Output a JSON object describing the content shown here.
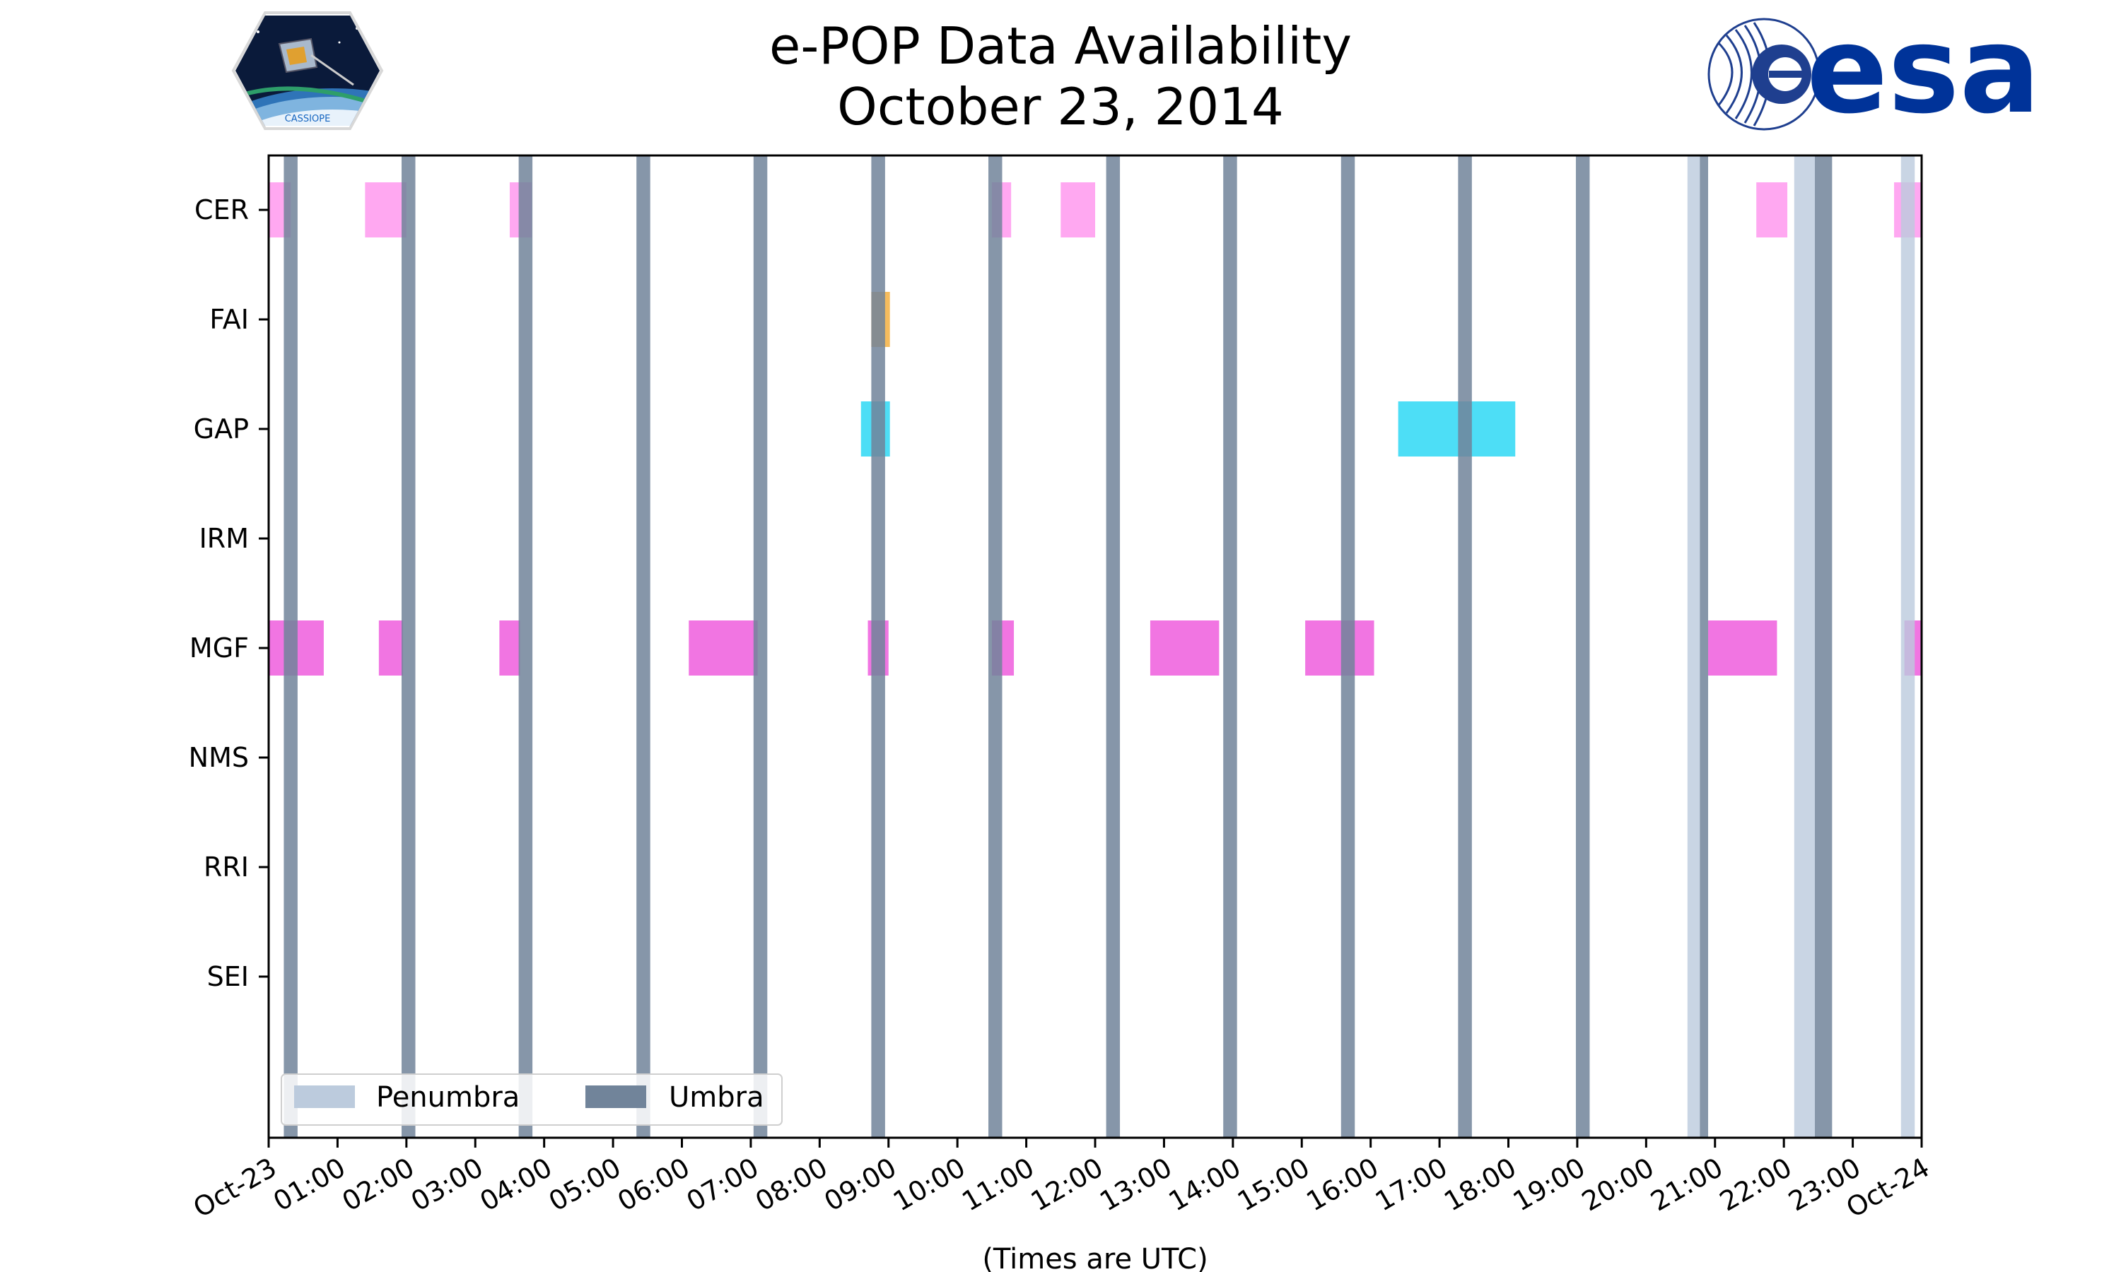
{
  "chart_data": {
    "type": "timeline",
    "title": "e-POP Data Availability",
    "subtitle": "October 23, 2014",
    "xlabel": "(Times are UTC)",
    "x_range_hours": [
      0,
      24
    ],
    "x_ticks": [
      "Oct-23",
      "01:00",
      "02:00",
      "03:00",
      "04:00",
      "05:00",
      "06:00",
      "07:00",
      "08:00",
      "09:00",
      "10:00",
      "11:00",
      "12:00",
      "13:00",
      "14:00",
      "15:00",
      "16:00",
      "17:00",
      "18:00",
      "19:00",
      "20:00",
      "21:00",
      "22:00",
      "23:00",
      "Oct-24"
    ],
    "instruments": [
      "CER",
      "FAI",
      "GAP",
      "IRM",
      "MGF",
      "NMS",
      "RRI",
      "SEI"
    ],
    "colors": {
      "CER": "#ff99ee",
      "FAI": "#f5b041",
      "GAP": "#2ed8f5",
      "MGF": "#ee5ddd",
      "umbra": "#71849a",
      "penumbra": "#bccbdd"
    },
    "availability": {
      "CER": [
        [
          0.0,
          0.32
        ],
        [
          1.4,
          2.0
        ],
        [
          3.5,
          3.82
        ],
        [
          10.5,
          10.78
        ],
        [
          11.5,
          12.0
        ],
        [
          21.6,
          22.05
        ],
        [
          23.6,
          24.0
        ]
      ],
      "FAI": [
        [
          8.75,
          9.02
        ]
      ],
      "GAP": [
        [
          8.6,
          9.02
        ],
        [
          16.4,
          18.1
        ]
      ],
      "IRM": [],
      "MGF": [
        [
          0.0,
          0.8
        ],
        [
          1.6,
          1.95
        ],
        [
          3.35,
          3.65
        ],
        [
          6.1,
          7.1
        ],
        [
          8.7,
          9.0
        ],
        [
          10.5,
          10.82
        ],
        [
          12.8,
          13.8
        ],
        [
          15.05,
          16.05
        ],
        [
          20.9,
          21.9
        ],
        [
          23.75,
          24.0
        ]
      ],
      "NMS": [],
      "RRI": [],
      "SEI": []
    },
    "umbra": [
      [
        0.22,
        0.42
      ],
      [
        1.93,
        2.13
      ],
      [
        3.63,
        3.83
      ],
      [
        5.34,
        5.54
      ],
      [
        7.04,
        7.24
      ],
      [
        8.75,
        8.95
      ],
      [
        10.45,
        10.65
      ],
      [
        12.16,
        12.36
      ],
      [
        13.86,
        14.06
      ],
      [
        15.57,
        15.77
      ],
      [
        17.27,
        17.47
      ],
      [
        18.98,
        19.18
      ],
      [
        20.78,
        20.9
      ],
      [
        22.45,
        22.7
      ]
    ],
    "penumbra": [
      [
        20.6,
        20.78
      ],
      [
        22.15,
        22.45
      ],
      [
        23.7,
        23.9
      ]
    ],
    "legend": {
      "position": "lower-left",
      "entries": [
        {
          "label": "Penumbra",
          "color": "#bccbdd"
        },
        {
          "label": "Umbra",
          "color": "#71849a"
        }
      ]
    }
  },
  "logos": {
    "left": "CASSIOPE",
    "right": "esa"
  }
}
